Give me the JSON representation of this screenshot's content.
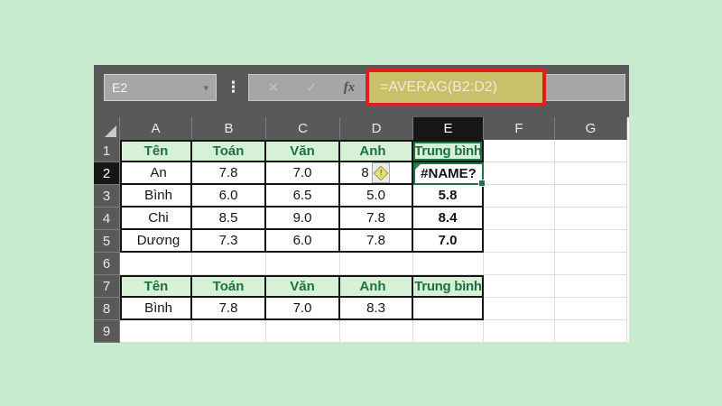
{
  "colors": {
    "page_background": "#c8ebd0",
    "window_chrome": "#595959",
    "selection_green": "#217346",
    "table_header_bg": "#d6f1d6",
    "table_header_text": "#1e7145",
    "error_border_red": "#da1f1f",
    "formula_highlight_bg": "#c9c06a",
    "selected_header_bg": "#161616"
  },
  "formula_bar": {
    "name_box_value": "E2",
    "dropdown_icon": "▾",
    "more_dots_icon": "⋮",
    "cancel_icon": "✕",
    "enter_icon": "✓",
    "insert_function_icon": "fx",
    "formula": "=AVERAG(B2:D2)"
  },
  "grid": {
    "column_headers": [
      "A",
      "B",
      "C",
      "D",
      "E",
      "F",
      "G"
    ],
    "row_headers": [
      "1",
      "2",
      "3",
      "4",
      "5",
      "6",
      "7",
      "8",
      "9"
    ],
    "selected_cell": "E2",
    "selected_column": "E",
    "selected_row": "2"
  },
  "cells": {
    "A1": "Tên",
    "B1": "Toán",
    "C1": "Văn",
    "D1": "Anh",
    "E1": "Trung bình",
    "A2": "An",
    "B2": "7.8",
    "C2": "7.0",
    "D2": "8",
    "E2": "#NAME?",
    "A3": "Bình",
    "B3": "6.0",
    "C3": "6.5",
    "D3": "5.0",
    "E3": "5.8",
    "A4": "Chi",
    "B4": "8.5",
    "C4": "9.0",
    "D4": "7.8",
    "E4": "8.4",
    "A5": "Dương",
    "B5": "7.3",
    "C5": "6.0",
    "D5": "7.8",
    "E5": "7.0",
    "A7": "Tên",
    "B7": "Toán",
    "C7": "Văn",
    "D7": "Anh",
    "E7": "Trung bình",
    "A8": "Bình",
    "B8": "7.8",
    "C8": "7.0",
    "D8": "8.3"
  },
  "icons": {
    "error_warning": "!"
  }
}
